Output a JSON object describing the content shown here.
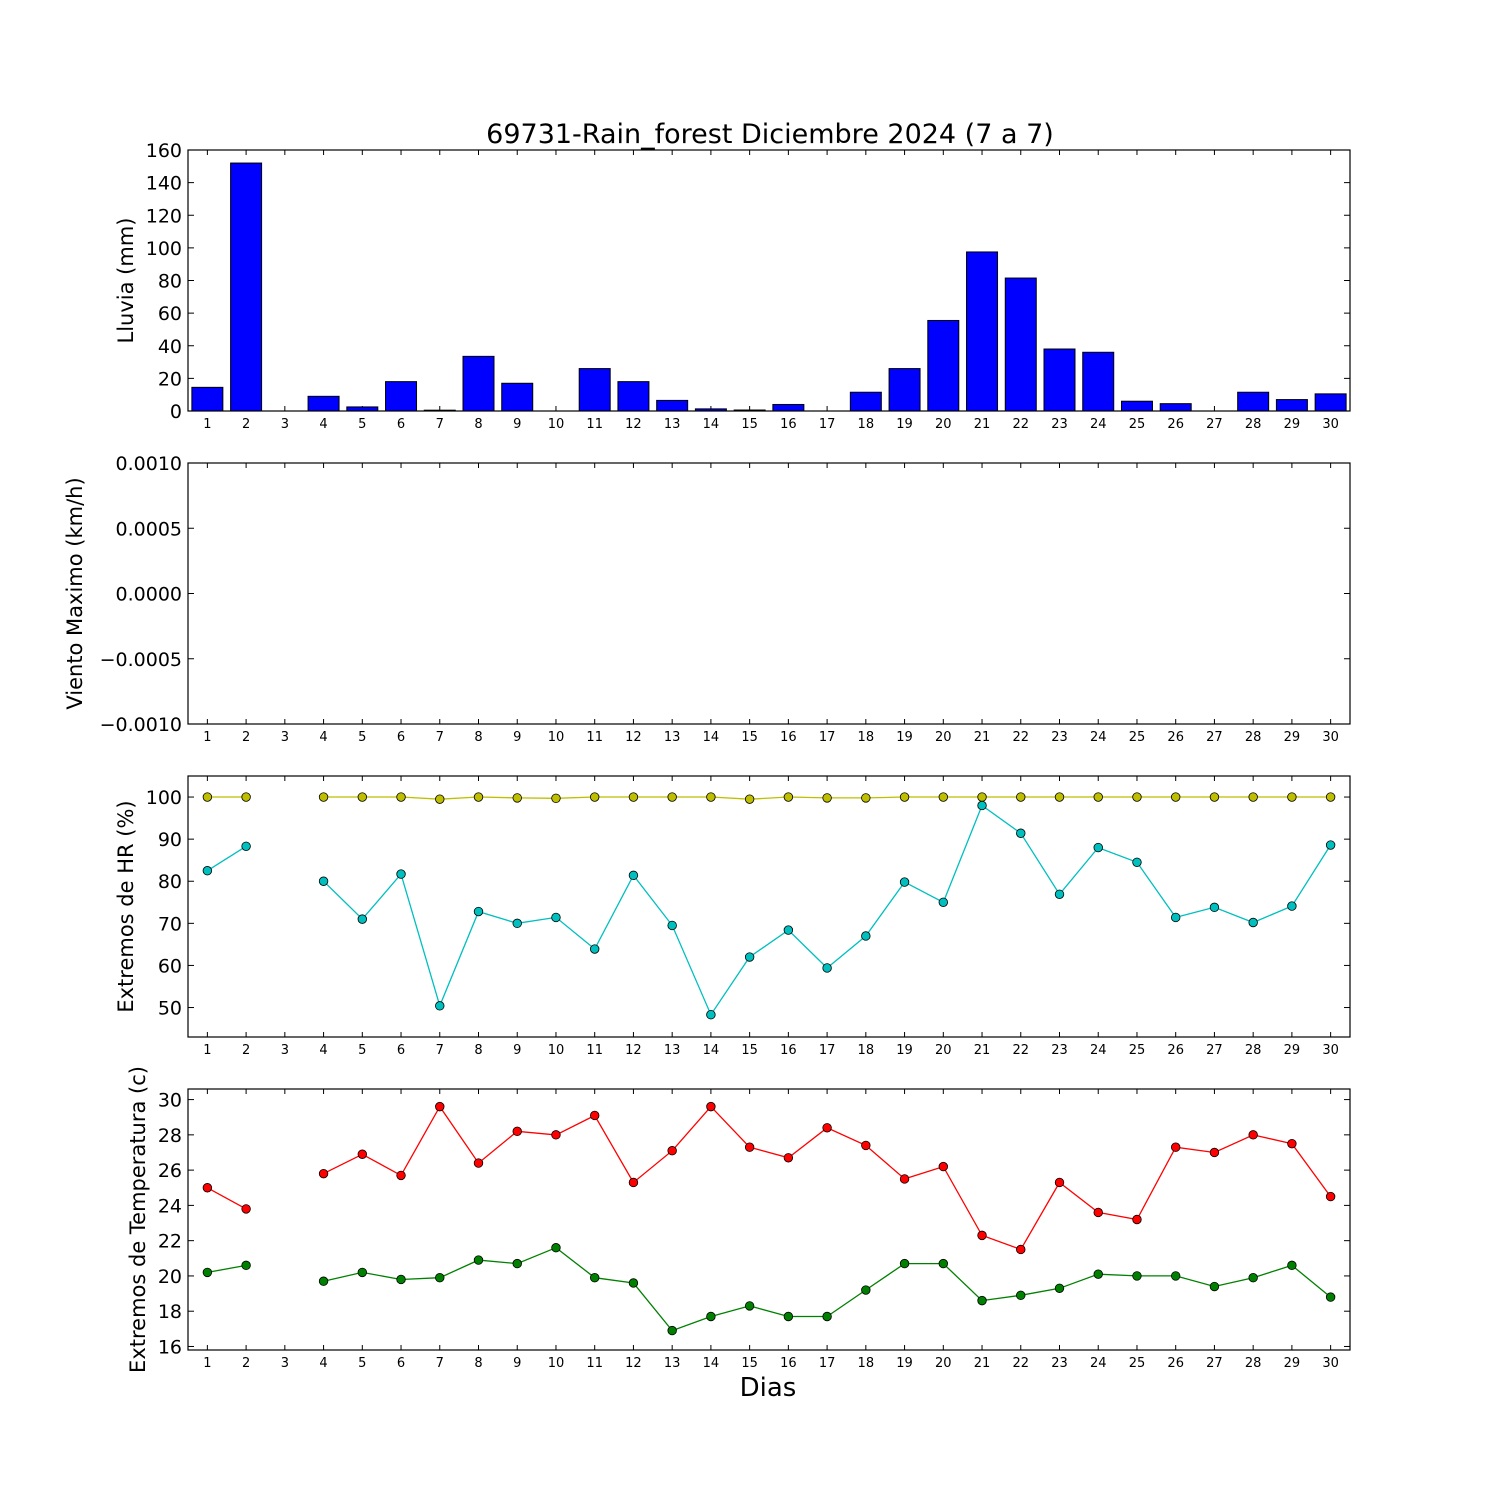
{
  "title": "69731-Rain_forest Diciembre 2024  (7 a 7)",
  "xlabel": "Dias",
  "colors": {
    "rain_bar": "#0000ff",
    "hr_max": "#bfbf00",
    "hr_min": "#00bfbf",
    "temp_max": "#ff0000",
    "temp_min": "#008000"
  },
  "chart_data": [
    {
      "type": "bar",
      "ylabel": "Lluvia (mm)",
      "ylim": [
        0,
        160
      ],
      "yticks": [
        "0",
        "20",
        "40",
        "60",
        "80",
        "100",
        "120",
        "140",
        "160"
      ],
      "categories": [
        1,
        2,
        3,
        4,
        5,
        6,
        7,
        8,
        9,
        10,
        11,
        12,
        13,
        14,
        15,
        16,
        17,
        18,
        19,
        20,
        21,
        22,
        23,
        24,
        25,
        26,
        27,
        28,
        29,
        30
      ],
      "values": [
        14.5,
        152,
        0,
        9,
        2.5,
        18,
        0.5,
        33.5,
        17,
        0,
        26,
        18,
        6.5,
        1.3,
        0.6,
        4,
        0,
        11.5,
        26,
        55.5,
        97.5,
        81.5,
        38,
        36,
        6,
        4.5,
        0,
        11.5,
        7,
        10.5
      ]
    },
    {
      "type": "line",
      "ylabel": "Viento Maximo (km/h)",
      "ylim": [
        -0.001,
        0.001
      ],
      "yticks": [
        "−0.0010",
        "−0.0005",
        "0.0000",
        "0.0005",
        "0.0010"
      ],
      "categories": [
        1,
        2,
        3,
        4,
        5,
        6,
        7,
        8,
        9,
        10,
        11,
        12,
        13,
        14,
        15,
        16,
        17,
        18,
        19,
        20,
        21,
        22,
        23,
        24,
        25,
        26,
        27,
        28,
        29,
        30
      ],
      "series": []
    },
    {
      "type": "line",
      "ylabel": "Extremos de HR (%)",
      "ylim": [
        43,
        105
      ],
      "yticks": [
        "50",
        "60",
        "70",
        "80",
        "90",
        "100"
      ],
      "categories": [
        1,
        2,
        3,
        4,
        5,
        6,
        7,
        8,
        9,
        10,
        11,
        12,
        13,
        14,
        15,
        16,
        17,
        18,
        19,
        20,
        21,
        22,
        23,
        24,
        25,
        26,
        27,
        28,
        29,
        30
      ],
      "series": [
        {
          "values": [
            100,
            100,
            null,
            100,
            100,
            100,
            99.5,
            100,
            99.8,
            99.7,
            100,
            100,
            100,
            100,
            99.5,
            100,
            99.8,
            99.8,
            100,
            100,
            100,
            100,
            100,
            100,
            100,
            100,
            100,
            100,
            100,
            100
          ]
        },
        {
          "values": [
            82.5,
            88.3,
            null,
            80,
            71,
            81.7,
            50.4,
            72.8,
            70,
            71.4,
            63.9,
            81.4,
            69.5,
            48.3,
            62,
            68.4,
            59.4,
            67,
            79.8,
            75,
            98,
            91.4,
            76.9,
            88,
            84.5,
            71.4,
            73.8,
            70.2,
            74.1,
            88.6
          ]
        }
      ]
    },
    {
      "type": "line",
      "ylabel": "Extremos de Temperatura (c)",
      "ylim": [
        15.8,
        30.6
      ],
      "yticks": [
        "16",
        "18",
        "20",
        "22",
        "24",
        "26",
        "28",
        "30"
      ],
      "categories": [
        1,
        2,
        3,
        4,
        5,
        6,
        7,
        8,
        9,
        10,
        11,
        12,
        13,
        14,
        15,
        16,
        17,
        18,
        19,
        20,
        21,
        22,
        23,
        24,
        25,
        26,
        27,
        28,
        29,
        30
      ],
      "series": [
        {
          "values": [
            25,
            23.8,
            null,
            25.8,
            26.9,
            25.7,
            29.6,
            26.4,
            28.2,
            28,
            29.1,
            25.3,
            27.1,
            29.6,
            27.3,
            26.7,
            28.4,
            27.4,
            25.5,
            26.2,
            22.3,
            21.5,
            25.3,
            23.6,
            23.2,
            27.3,
            27,
            28,
            27.5,
            24.5
          ]
        },
        {
          "values": [
            20.2,
            20.6,
            null,
            19.7,
            20.2,
            19.8,
            19.9,
            20.9,
            20.7,
            21.6,
            19.9,
            19.6,
            16.9,
            17.7,
            18.3,
            17.7,
            17.7,
            19.2,
            20.7,
            20.7,
            18.6,
            18.9,
            19.3,
            20.1,
            20,
            20,
            19.4,
            19.9,
            20.6,
            18.8
          ]
        }
      ]
    }
  ]
}
